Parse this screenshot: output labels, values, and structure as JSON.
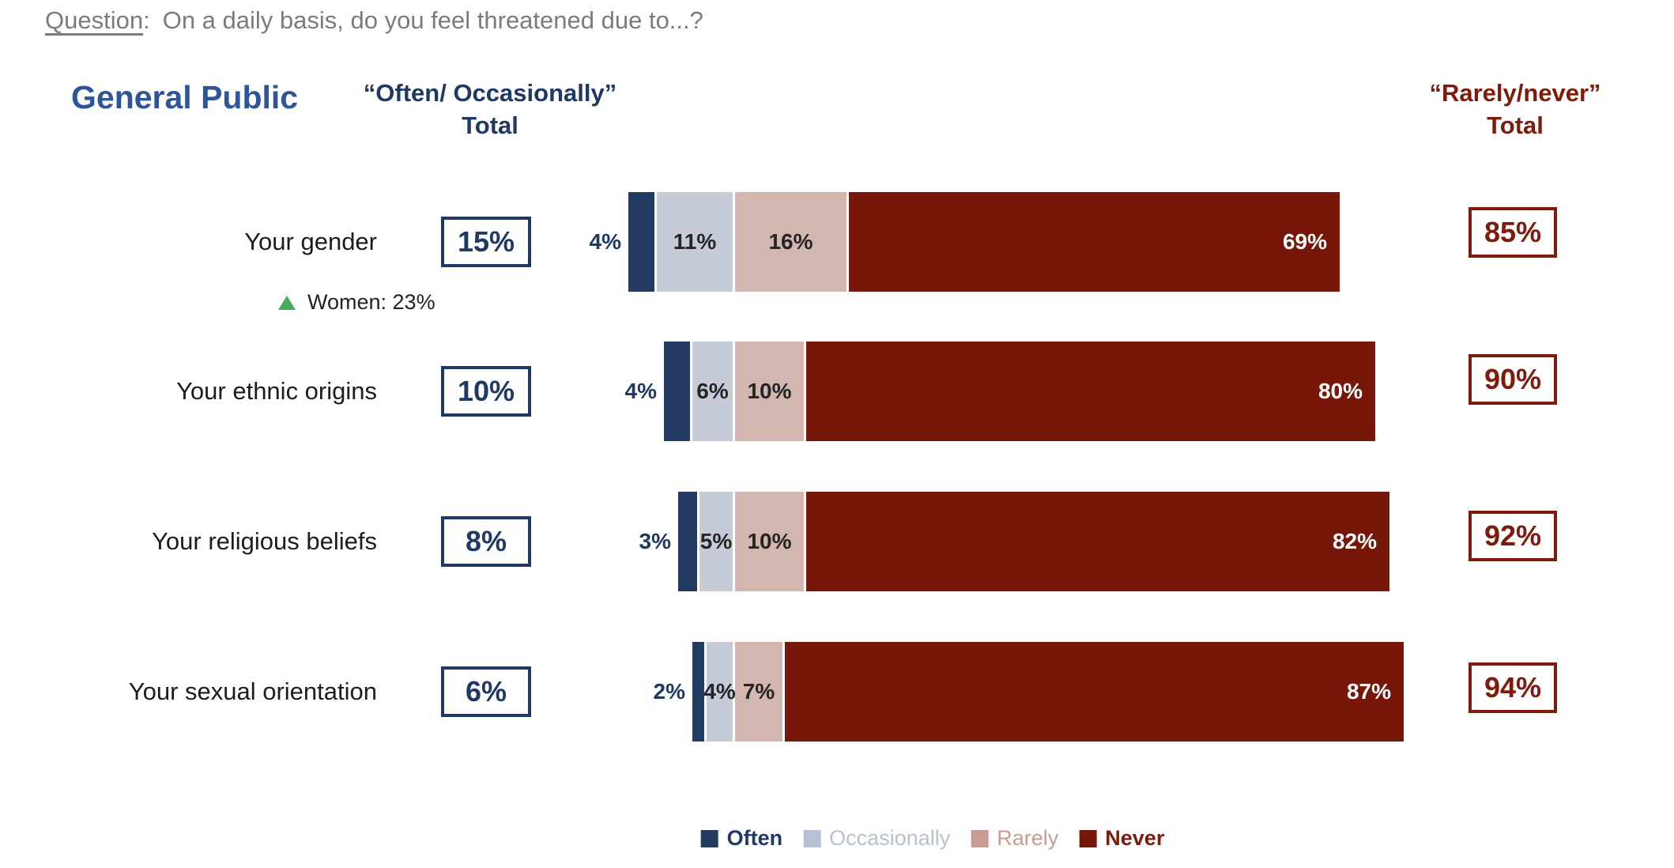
{
  "question": {
    "label": "Question",
    "colon": ":",
    "text": "On a daily basis, do you feel threatened due to...?"
  },
  "title": "General Public",
  "left_header": {
    "line1": "“Often/ Occasionally”",
    "line2": "Total"
  },
  "right_header": {
    "line1": "“Rarely/never”",
    "line2": "Total"
  },
  "colors": {
    "often_navy": "#233A61",
    "occasionally_blue_gray": "#C5CCD8",
    "rarely_rose": "#D4B6B0",
    "never_dark_red": "#761709",
    "title_blue": "#2E5597",
    "left_header_navy": "#203864",
    "right_header_red": "#7E1B0C",
    "question_gray": "#7B7B7B",
    "annotation_green": "#47AB5B",
    "bar_label_dark": "#252525",
    "category_text": "#1C1C1C"
  },
  "chart_data": {
    "type": "bar",
    "orientation": "horizontal",
    "stacked": true,
    "diverging": true,
    "alignment_note": "all rows aligned at the boundary between Occasionally and Rarely segments; thin white dividers between segments",
    "categories": [
      "Your gender",
      "Your ethnic origins",
      "Your religious beliefs",
      "Your sexual orientation"
    ],
    "series": [
      {
        "name": "Often",
        "color": "#233A61",
        "values": [
          4,
          4,
          3,
          2
        ],
        "label_style": "outside-left-navy-bold"
      },
      {
        "name": "Occasionally",
        "color": "#C5CCD8",
        "values": [
          11,
          6,
          5,
          4
        ],
        "label_style": "inside-center-dark"
      },
      {
        "name": "Rarely",
        "color": "#D4B6B0",
        "values": [
          16,
          10,
          10,
          7
        ],
        "label_style": "inside-center-dark"
      },
      {
        "name": "Never",
        "color": "#761709",
        "values": [
          69,
          80,
          82,
          87
        ],
        "label_style": "inside-right-white"
      }
    ],
    "value_suffix": "%",
    "left_totals": {
      "title": "“Often/ Occasionally” Total",
      "values": [
        "15%",
        "10%",
        "8%",
        "6%"
      ]
    },
    "right_totals": {
      "title": "“Rarely/never” Total",
      "values": [
        "85%",
        "90%",
        "92%",
        "94%"
      ]
    },
    "annotations": [
      {
        "row_index": 0,
        "marker": "up-triangle",
        "text": "Women: 23%"
      }
    ]
  },
  "legend": [
    {
      "label": "Often",
      "swatch_color": "#233A61",
      "text_color": "#203864",
      "bold": true
    },
    {
      "label": "Occasionally",
      "swatch_color": "#B6C1D1",
      "text_color": "#B6C1D1",
      "bold": false
    },
    {
      "label": "Rarely",
      "swatch_color": "#C89B93",
      "text_color": "#C89B93",
      "bold": false
    },
    {
      "label": "Never",
      "swatch_color": "#761709",
      "text_color": "#7E1B0C",
      "bold": true
    }
  ]
}
